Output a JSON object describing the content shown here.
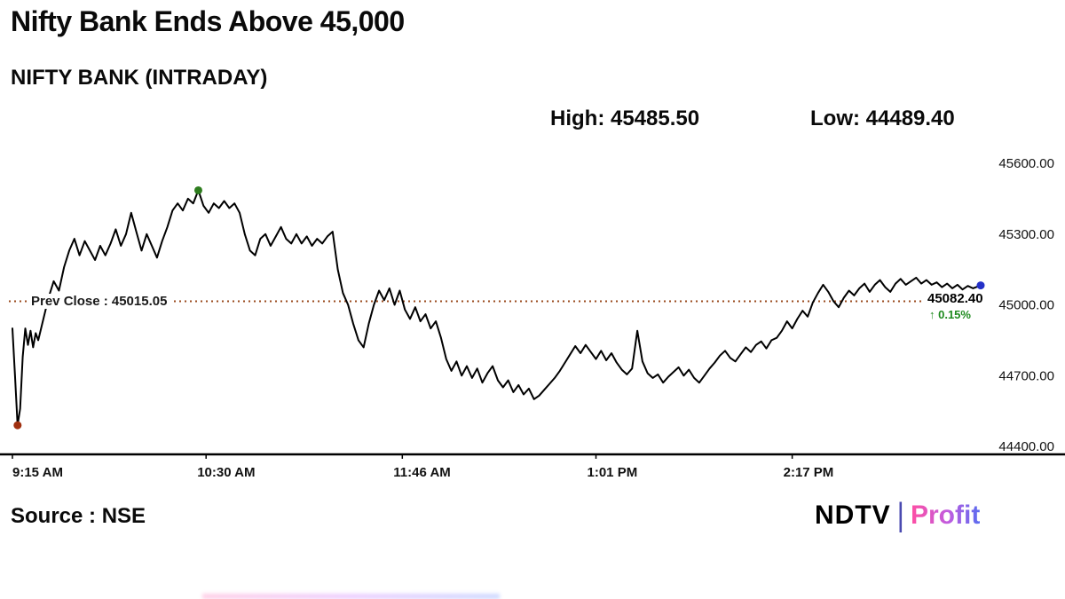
{
  "header": {
    "title": "Nifty Bank Ends Above 45,000",
    "subtitle": "NIFTY BANK (INTRADAY)",
    "high_label": "High: 45485.50",
    "low_label": "Low: 44489.40"
  },
  "footer": {
    "source": "Source : NSE",
    "logo": {
      "ndtv": "NDTV",
      "divider": "|",
      "profit": "Profit"
    }
  },
  "chart_data": {
    "type": "line",
    "title": "NIFTY BANK (INTRADAY)",
    "line_color": "#000000",
    "prev_close_color": "#9a4a1e",
    "grid": false,
    "legend": false,
    "x_axis": {
      "labels": [
        "9:15 AM",
        "10:30 AM",
        "11:46 AM",
        "1:01 PM",
        "2:17 PM"
      ],
      "label_minutes": [
        0,
        75,
        151,
        226,
        302
      ],
      "range_minutes": [
        0,
        375
      ]
    },
    "y_axis": {
      "ticks": [
        45600,
        45300,
        45000,
        44700,
        44400
      ],
      "tick_labels": [
        "45600.00",
        "45300.00",
        "45000.00",
        "44700.00",
        "44400.00"
      ],
      "range": [
        44400,
        45600
      ],
      "position": "right"
    },
    "high": 45485.5,
    "low": 44489.4,
    "prev_close": {
      "label": "Prev Close : 45015.05",
      "value": 45015.05
    },
    "last": {
      "label": "45082.40",
      "value": 45082.4,
      "change_label": "↑ 0.15%",
      "change_color": "#1e8a1e"
    },
    "markers": [
      {
        "name": "open-low-marker",
        "t": 2,
        "v": 44489.4,
        "color": "#a03010"
      },
      {
        "name": "day-high-marker",
        "t": 72,
        "v": 45485.5,
        "color": "#2e7d1e"
      },
      {
        "name": "last-price-marker",
        "t": 375,
        "v": 45082.4,
        "color": "#2430c8"
      }
    ],
    "points": [
      [
        0,
        44900
      ],
      [
        1,
        44700
      ],
      [
        2,
        44489.4
      ],
      [
        3,
        44560
      ],
      [
        4,
        44780
      ],
      [
        5,
        44900
      ],
      [
        6,
        44830
      ],
      [
        7,
        44890
      ],
      [
        8,
        44820
      ],
      [
        9,
        44880
      ],
      [
        10,
        44850
      ],
      [
        12,
        44940
      ],
      [
        14,
        45030
      ],
      [
        16,
        45100
      ],
      [
        18,
        45060
      ],
      [
        20,
        45160
      ],
      [
        22,
        45230
      ],
      [
        24,
        45280
      ],
      [
        26,
        45210
      ],
      [
        28,
        45270
      ],
      [
        30,
        45230
      ],
      [
        32,
        45190
      ],
      [
        34,
        45250
      ],
      [
        36,
        45210
      ],
      [
        38,
        45260
      ],
      [
        40,
        45320
      ],
      [
        42,
        45250
      ],
      [
        44,
        45300
      ],
      [
        46,
        45390
      ],
      [
        48,
        45310
      ],
      [
        50,
        45230
      ],
      [
        52,
        45300
      ],
      [
        54,
        45250
      ],
      [
        56,
        45200
      ],
      [
        58,
        45270
      ],
      [
        60,
        45330
      ],
      [
        62,
        45400
      ],
      [
        64,
        45430
      ],
      [
        66,
        45400
      ],
      [
        68,
        45450
      ],
      [
        70,
        45430
      ],
      [
        72,
        45485.5
      ],
      [
        74,
        45420
      ],
      [
        76,
        45390
      ],
      [
        78,
        45430
      ],
      [
        80,
        45410
      ],
      [
        82,
        45440
      ],
      [
        84,
        45410
      ],
      [
        86,
        45430
      ],
      [
        88,
        45390
      ],
      [
        90,
        45300
      ],
      [
        92,
        45230
      ],
      [
        94,
        45210
      ],
      [
        96,
        45280
      ],
      [
        98,
        45300
      ],
      [
        100,
        45250
      ],
      [
        102,
        45290
      ],
      [
        104,
        45330
      ],
      [
        106,
        45280
      ],
      [
        108,
        45260
      ],
      [
        110,
        45300
      ],
      [
        112,
        45260
      ],
      [
        114,
        45290
      ],
      [
        116,
        45250
      ],
      [
        118,
        45280
      ],
      [
        120,
        45260
      ],
      [
        122,
        45290
      ],
      [
        124,
        45310
      ],
      [
        126,
        45150
      ],
      [
        128,
        45050
      ],
      [
        130,
        45000
      ],
      [
        132,
        44920
      ],
      [
        134,
        44850
      ],
      [
        136,
        44820
      ],
      [
        138,
        44920
      ],
      [
        140,
        45000
      ],
      [
        142,
        45060
      ],
      [
        144,
        45020
      ],
      [
        146,
        45070
      ],
      [
        148,
        45000
      ],
      [
        150,
        45060
      ],
      [
        152,
        44980
      ],
      [
        154,
        44940
      ],
      [
        156,
        44990
      ],
      [
        158,
        44930
      ],
      [
        160,
        44960
      ],
      [
        162,
        44900
      ],
      [
        164,
        44930
      ],
      [
        166,
        44860
      ],
      [
        168,
        44770
      ],
      [
        170,
        44720
      ],
      [
        172,
        44760
      ],
      [
        174,
        44700
      ],
      [
        176,
        44740
      ],
      [
        178,
        44690
      ],
      [
        180,
        44730
      ],
      [
        182,
        44670
      ],
      [
        184,
        44710
      ],
      [
        186,
        44740
      ],
      [
        188,
        44680
      ],
      [
        190,
        44650
      ],
      [
        192,
        44680
      ],
      [
        194,
        44630
      ],
      [
        196,
        44660
      ],
      [
        198,
        44620
      ],
      [
        200,
        44645
      ],
      [
        202,
        44600
      ],
      [
        204,
        44615
      ],
      [
        206,
        44640
      ],
      [
        208,
        44665
      ],
      [
        210,
        44690
      ],
      [
        212,
        44720
      ],
      [
        214,
        44755
      ],
      [
        216,
        44790
      ],
      [
        218,
        44825
      ],
      [
        220,
        44795
      ],
      [
        222,
        44830
      ],
      [
        224,
        44800
      ],
      [
        226,
        44770
      ],
      [
        228,
        44805
      ],
      [
        230,
        44765
      ],
      [
        232,
        44795
      ],
      [
        234,
        44755
      ],
      [
        236,
        44725
      ],
      [
        238,
        44705
      ],
      [
        240,
        44730
      ],
      [
        242,
        44890
      ],
      [
        244,
        44760
      ],
      [
        246,
        44710
      ],
      [
        248,
        44690
      ],
      [
        250,
        44705
      ],
      [
        252,
        44670
      ],
      [
        254,
        44695
      ],
      [
        256,
        44715
      ],
      [
        258,
        44735
      ],
      [
        260,
        44700
      ],
      [
        262,
        44725
      ],
      [
        264,
        44690
      ],
      [
        266,
        44670
      ],
      [
        268,
        44700
      ],
      [
        270,
        44730
      ],
      [
        272,
        44755
      ],
      [
        274,
        44785
      ],
      [
        276,
        44805
      ],
      [
        278,
        44775
      ],
      [
        280,
        44760
      ],
      [
        282,
        44790
      ],
      [
        284,
        44820
      ],
      [
        286,
        44800
      ],
      [
        288,
        44830
      ],
      [
        290,
        44845
      ],
      [
        292,
        44815
      ],
      [
        294,
        44850
      ],
      [
        296,
        44860
      ],
      [
        298,
        44890
      ],
      [
        300,
        44930
      ],
      [
        302,
        44900
      ],
      [
        304,
        44940
      ],
      [
        306,
        44975
      ],
      [
        308,
        44950
      ],
      [
        310,
        45010
      ],
      [
        312,
        45050
      ],
      [
        314,
        45085
      ],
      [
        316,
        45055
      ],
      [
        318,
        45015
      ],
      [
        320,
        44990
      ],
      [
        322,
        45030
      ],
      [
        324,
        45060
      ],
      [
        326,
        45040
      ],
      [
        328,
        45070
      ],
      [
        330,
        45090
      ],
      [
        332,
        45055
      ],
      [
        334,
        45085
      ],
      [
        336,
        45105
      ],
      [
        338,
        45075
      ],
      [
        340,
        45055
      ],
      [
        342,
        45090
      ],
      [
        344,
        45110
      ],
      [
        346,
        45085
      ],
      [
        348,
        45100
      ],
      [
        350,
        45115
      ],
      [
        352,
        45090
      ],
      [
        354,
        45105
      ],
      [
        356,
        45085
      ],
      [
        358,
        45095
      ],
      [
        360,
        45075
      ],
      [
        362,
        45090
      ],
      [
        364,
        45070
      ],
      [
        366,
        45085
      ],
      [
        368,
        45065
      ],
      [
        370,
        45080
      ],
      [
        372,
        45070
      ],
      [
        375,
        45082.4
      ]
    ]
  }
}
